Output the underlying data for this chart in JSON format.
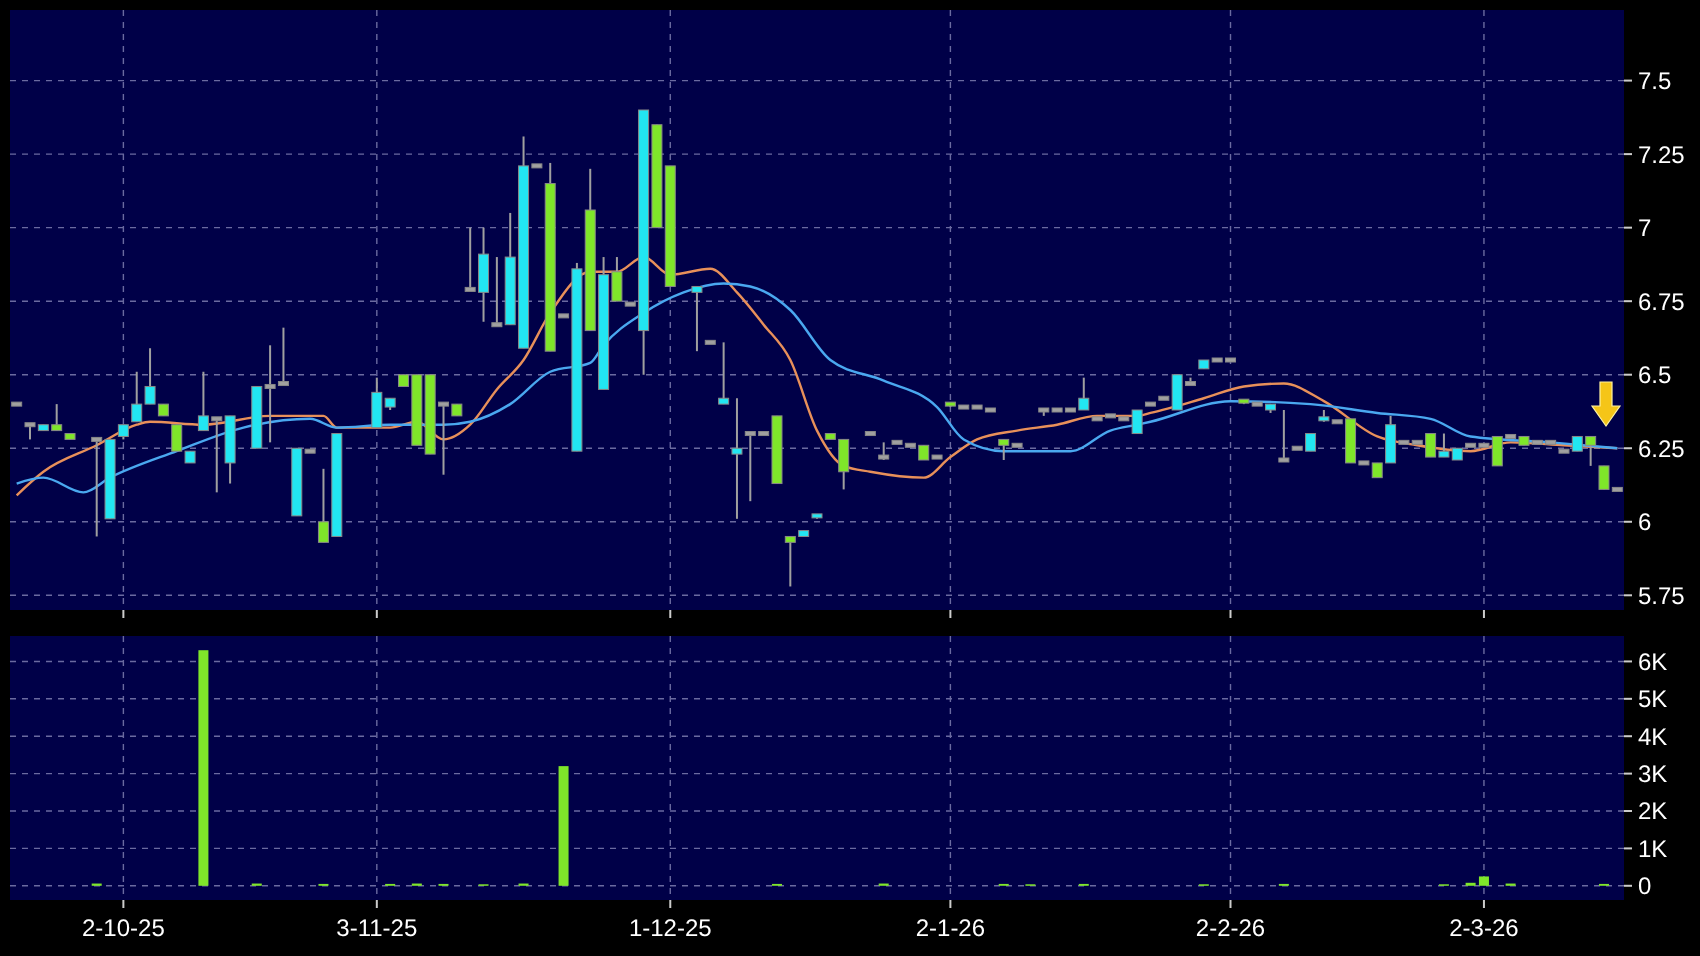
{
  "chart_data": [
    {
      "type": "candlestick",
      "tick_labels": "y",
      "ylim": [
        5.7,
        7.74
      ],
      "yticks": [
        5.75,
        6,
        6.25,
        6.5,
        6.75,
        7,
        7.25,
        7.5
      ],
      "grid": true,
      "categories": [
        null,
        null,
        null,
        null,
        null,
        null,
        null,
        null,
        null,
        null,
        null,
        null,
        null,
        null,
        null,
        null,
        null,
        null,
        null,
        null,
        null,
        null,
        null,
        null,
        null,
        null,
        null,
        null,
        null,
        null,
        null,
        null,
        null,
        null,
        null,
        null,
        null,
        null,
        null,
        null,
        null,
        null,
        null,
        null,
        null,
        null,
        null,
        null,
        null,
        null,
        null,
        null,
        null,
        null,
        null,
        null,
        null,
        null,
        null,
        null,
        null,
        null,
        null,
        null,
        null,
        null,
        null,
        null,
        null,
        null,
        null,
        null,
        null,
        null,
        null,
        null,
        null,
        null,
        null,
        null,
        null,
        null,
        null,
        null,
        null,
        null,
        null,
        null,
        null,
        null,
        null,
        null,
        null,
        null,
        null,
        null,
        null,
        null,
        null,
        null,
        null,
        null,
        null,
        null,
        null,
        null,
        null,
        null,
        null,
        null,
        null,
        null,
        null,
        null,
        null,
        null,
        null,
        null,
        null,
        null,
        null
      ],
      "ohlc": [
        [
          6.4,
          6.4,
          6.4,
          6.4
        ],
        [
          6.33,
          6.33,
          6.28,
          6.33
        ],
        [
          6.31,
          6.33,
          6.31,
          6.33
        ],
        [
          6.33,
          6.4,
          6.31,
          6.31
        ],
        [
          6.3,
          6.3,
          6.28,
          6.28
        ],
        null,
        [
          6.28,
          6.28,
          5.95,
          6.28
        ],
        [
          6.01,
          6.28,
          6.01,
          6.28
        ],
        [
          6.29,
          6.33,
          6.28,
          6.33
        ],
        [
          6.34,
          6.51,
          6.34,
          6.4
        ],
        [
          6.4,
          6.59,
          6.4,
          6.46
        ],
        [
          6.4,
          6.4,
          6.36,
          6.36
        ],
        [
          6.33,
          6.33,
          6.24,
          6.24
        ],
        [
          6.2,
          6.24,
          6.2,
          6.24
        ],
        [
          6.31,
          6.51,
          6.31,
          6.36
        ],
        [
          6.35,
          6.35,
          6.1,
          6.35
        ],
        [
          6.2,
          6.36,
          6.13,
          6.36
        ],
        null,
        [
          6.25,
          6.46,
          6.25,
          6.46
        ],
        [
          6.46,
          6.6,
          6.27,
          6.46
        ],
        [
          6.47,
          6.66,
          6.47,
          6.47
        ],
        [
          6.02,
          6.25,
          6.02,
          6.25
        ],
        [
          6.24,
          6.24,
          6.24,
          6.24
        ],
        [
          6,
          6.18,
          5.93,
          5.93
        ],
        [
          5.95,
          6.3,
          5.95,
          6.3
        ],
        null,
        null,
        [
          6.32,
          6.49,
          6.32,
          6.44
        ],
        [
          6.39,
          6.42,
          6.38,
          6.42
        ],
        [
          6.5,
          6.5,
          6.46,
          6.46
        ],
        [
          6.5,
          6.5,
          6.26,
          6.26
        ],
        [
          6.5,
          6.5,
          6.23,
          6.23
        ],
        [
          6.4,
          6.4,
          6.16,
          6.4
        ],
        [
          6.4,
          6.4,
          6.36,
          6.36
        ],
        [
          6.79,
          7,
          6.79,
          6.79
        ],
        [
          6.78,
          7,
          6.68,
          6.91
        ],
        [
          6.67,
          6.9,
          6.67,
          6.67
        ],
        [
          6.67,
          7.05,
          6.67,
          6.9
        ],
        [
          6.59,
          7.31,
          6.59,
          7.21
        ],
        [
          7.21,
          7.21,
          7.21,
          7.21
        ],
        [
          7.15,
          7.22,
          6.58,
          6.58
        ],
        [
          6.7,
          6.7,
          6.7,
          6.7
        ],
        [
          6.24,
          6.88,
          6.24,
          6.86
        ],
        [
          7.06,
          7.2,
          6.65,
          6.65
        ],
        [
          6.45,
          6.9,
          6.45,
          6.84
        ],
        [
          6.85,
          6.9,
          6.75,
          6.75
        ],
        [
          6.74,
          6.74,
          6.74,
          6.74
        ],
        [
          6.65,
          7.4,
          6.5,
          7.4
        ],
        [
          7.35,
          7.35,
          7,
          7
        ],
        [
          7.21,
          7.21,
          6.8,
          6.8
        ],
        null,
        [
          6.78,
          6.8,
          6.58,
          6.8
        ],
        [
          6.61,
          6.61,
          6.61,
          6.61
        ],
        [
          6.4,
          6.61,
          6.4,
          6.42
        ],
        [
          6.23,
          6.42,
          6.01,
          6.25
        ],
        [
          6.3,
          6.3,
          6.07,
          6.3
        ],
        [
          6.3,
          6.3,
          6.3,
          6.3
        ],
        [
          6.36,
          6.36,
          6.13,
          6.13
        ],
        [
          5.95,
          5.95,
          5.78,
          5.93
        ],
        [
          5.95,
          5.97,
          5.95,
          5.97
        ],
        [
          6.01,
          6.02,
          6.01,
          6.02
        ],
        [
          6.3,
          6.3,
          6.28,
          6.28
        ],
        [
          6.28,
          6.28,
          6.11,
          6.17
        ],
        null,
        [
          6.3,
          6.3,
          6.3,
          6.3
        ],
        [
          6.22,
          6.27,
          6.21,
          6.22
        ],
        [
          6.27,
          6.27,
          6.27,
          6.27
        ],
        [
          6.26,
          6.26,
          6.26,
          6.26
        ],
        [
          6.26,
          6.26,
          6.21,
          6.21
        ],
        [
          6.22,
          6.22,
          6.22,
          6.22
        ],
        [
          6.4,
          6.4,
          6.39,
          6.39
        ],
        [
          6.39,
          6.39,
          6.39,
          6.39
        ],
        [
          6.39,
          6.39,
          6.39,
          6.39
        ],
        [
          6.38,
          6.38,
          6.38,
          6.38
        ],
        [
          6.28,
          6.28,
          6.21,
          6.26
        ],
        [
          6.26,
          6.26,
          6.26,
          6.26
        ],
        null,
        [
          6.38,
          6.38,
          6.36,
          6.38
        ],
        [
          6.38,
          6.38,
          6.38,
          6.38
        ],
        [
          6.38,
          6.38,
          6.38,
          6.38
        ],
        [
          6.38,
          6.49,
          6.38,
          6.42
        ],
        [
          6.35,
          6.35,
          6.35,
          6.35
        ],
        [
          6.36,
          6.36,
          6.36,
          6.36
        ],
        [
          6.35,
          6.35,
          6.35,
          6.35
        ],
        [
          6.3,
          6.38,
          6.3,
          6.38
        ],
        [
          6.4,
          6.4,
          6.4,
          6.4
        ],
        [
          6.42,
          6.42,
          6.42,
          6.42
        ],
        [
          6.38,
          6.5,
          6.38,
          6.5
        ],
        [
          6.47,
          6.49,
          6.47,
          6.47
        ],
        [
          6.52,
          6.55,
          6.52,
          6.55
        ],
        [
          6.55,
          6.55,
          6.55,
          6.55
        ],
        [
          6.55,
          6.55,
          6.55,
          6.55
        ],
        [
          6.41,
          6.41,
          6.4,
          6.4
        ],
        [
          6.4,
          6.4,
          6.4,
          6.4
        ],
        [
          6.38,
          6.4,
          6.37,
          6.4
        ],
        [
          6.21,
          6.38,
          6.21,
          6.21
        ],
        [
          6.25,
          6.25,
          6.25,
          6.25
        ],
        [
          6.24,
          6.3,
          6.24,
          6.3
        ],
        [
          6.34,
          6.38,
          6.34,
          6.35
        ],
        [
          6.34,
          6.34,
          6.34,
          6.34
        ],
        [
          6.35,
          6.35,
          6.2,
          6.2
        ],
        [
          6.2,
          6.2,
          6.2,
          6.2
        ],
        [
          6.2,
          6.2,
          6.15,
          6.15
        ],
        [
          6.2,
          6.36,
          6.2,
          6.33
        ],
        [
          6.27,
          6.27,
          6.27,
          6.27
        ],
        [
          6.27,
          6.27,
          6.27,
          6.27
        ],
        [
          6.3,
          6.3,
          6.22,
          6.22
        ],
        [
          6.22,
          6.3,
          6.22,
          6.24
        ],
        [
          6.21,
          6.25,
          6.21,
          6.25
        ],
        [
          6.26,
          6.26,
          6.26,
          6.26
        ],
        [
          6.26,
          6.26,
          6.26,
          6.26
        ],
        [
          6.29,
          6.29,
          6.19,
          6.19
        ],
        [
          6.29,
          6.29,
          6.29,
          6.29
        ],
        [
          6.29,
          6.29,
          6.26,
          6.26
        ],
        [
          6.27,
          6.27,
          6.27,
          6.27
        ],
        [
          6.27,
          6.27,
          6.27,
          6.27
        ],
        [
          6.24,
          6.24,
          6.24,
          6.24
        ],
        [
          6.24,
          6.29,
          6.24,
          6.29
        ],
        [
          6.29,
          6.29,
          6.19,
          6.26
        ],
        [
          6.19,
          6.19,
          6.11,
          6.11
        ],
        [
          6.11,
          6.11,
          6.11,
          6.11
        ]
      ],
      "colors": [
        "#a0a0a0",
        "#a0a0a0",
        "#22e6f2",
        "#7fe62a",
        "#7fe62a",
        null,
        "#a0a0a0",
        "#22e6f2",
        "#22e6f2",
        "#22e6f2",
        "#22e6f2",
        "#7fe62a",
        "#7fe62a",
        "#22e6f2",
        "#22e6f2",
        "#a0a0a0",
        "#22e6f2",
        null,
        "#22e6f2",
        "#a0a0a0",
        "#a0a0a0",
        "#22e6f2",
        "#a0a0a0",
        "#7fe62a",
        "#22e6f2",
        null,
        null,
        "#22e6f2",
        "#22e6f2",
        "#7fe62a",
        "#7fe62a",
        "#7fe62a",
        "#a0a0a0",
        "#7fe62a",
        "#a0a0a0",
        "#22e6f2",
        "#a0a0a0",
        "#22e6f2",
        "#22e6f2",
        "#a0a0a0",
        "#7fe62a",
        "#a0a0a0",
        "#22e6f2",
        "#7fe62a",
        "#22e6f2",
        "#7fe62a",
        "#a0a0a0",
        "#22e6f2",
        "#7fe62a",
        "#7fe62a",
        null,
        "#22e6f2",
        "#a0a0a0",
        "#22e6f2",
        "#22e6f2",
        "#a0a0a0",
        "#a0a0a0",
        "#7fe62a",
        "#7fe62a",
        "#22e6f2",
        "#22e6f2",
        "#7fe62a",
        "#7fe62a",
        null,
        "#a0a0a0",
        "#a0a0a0",
        "#a0a0a0",
        "#a0a0a0",
        "#7fe62a",
        "#a0a0a0",
        "#7fe62a",
        "#a0a0a0",
        "#a0a0a0",
        "#a0a0a0",
        "#7fe62a",
        "#a0a0a0",
        null,
        "#a0a0a0",
        "#a0a0a0",
        "#a0a0a0",
        "#22e6f2",
        "#a0a0a0",
        "#a0a0a0",
        "#a0a0a0",
        "#22e6f2",
        "#a0a0a0",
        "#a0a0a0",
        "#22e6f2",
        "#a0a0a0",
        "#22e6f2",
        "#a0a0a0",
        "#a0a0a0",
        "#7fe62a",
        "#a0a0a0",
        "#22e6f2",
        "#a0a0a0",
        "#a0a0a0",
        "#22e6f2",
        "#22e6f2",
        "#a0a0a0",
        "#7fe62a",
        "#a0a0a0",
        "#7fe62a",
        "#22e6f2",
        "#a0a0a0",
        "#a0a0a0",
        "#7fe62a",
        "#22e6f2",
        "#22e6f2",
        "#a0a0a0",
        "#a0a0a0",
        "#7fe62a",
        "#a0a0a0",
        "#7fe62a",
        "#a0a0a0",
        "#a0a0a0",
        "#a0a0a0",
        "#22e6f2",
        "#7fe62a",
        "#7fe62a",
        "#a0a0a0"
      ],
      "series": [
        {
          "type": "line",
          "color": "#e8905a",
          "values": [
            6.09,
            null,
            6.17,
            null,
            null,
            null,
            6.26,
            null,
            null,
            6.33,
            6.34,
            null,
            null,
            null,
            6.33,
            null,
            null,
            null,
            null,
            6.36,
            null,
            null,
            null,
            6.36,
            6.32,
            null,
            null,
            null,
            6.32,
            null,
            6.34,
            null,
            6.28,
            null,
            6.33,
            null,
            6.45,
            null,
            6.55,
            null,
            6.71,
            null,
            null,
            6.85,
            null,
            6.85,
            null,
            6.9,
            null,
            6.84,
            null,
            null,
            6.86,
            null,
            6.78,
            null,
            6.67,
            null,
            6.55,
            null,
            6.31,
            null,
            6.19,
            null,
            6.17,
            null,
            null,
            null,
            6.15,
            null,
            6.22,
            null,
            6.28,
            null,
            null,
            6.31,
            null,
            null,
            6.33,
            null,
            null,
            6.36,
            null,
            null,
            6.36,
            6.37,
            null,
            null,
            null,
            6.42,
            null,
            null,
            6.46,
            null,
            null,
            6.47,
            null,
            null,
            6.41,
            null,
            null,
            null,
            6.29,
            null,
            null,
            6.26,
            null,
            null,
            null,
            6.24,
            null,
            null,
            6.27,
            null,
            null,
            null,
            6.26,
            null,
            null,
            null,
            6.25
          ]
        },
        {
          "type": "line",
          "color": "#4aa8f0",
          "values": [
            6.13,
            null,
            6.15,
            null,
            null,
            6.1,
            null,
            6.15,
            null,
            null,
            null,
            null,
            6.24,
            null,
            null,
            null,
            null,
            6.32,
            null,
            null,
            null,
            null,
            6.35,
            null,
            6.32,
            null,
            null,
            null,
            6.33,
            null,
            null,
            null,
            6.33,
            null,
            6.34,
            null,
            null,
            6.4,
            null,
            null,
            6.51,
            null,
            null,
            6.54,
            6.6,
            null,
            null,
            6.71,
            null,
            null,
            6.78,
            null,
            null,
            6.81,
            null,
            6.8,
            null,
            null,
            6.72,
            null,
            null,
            6.55,
            null,
            null,
            null,
            6.48,
            null,
            null,
            null,
            6.39,
            null,
            6.28,
            null,
            null,
            6.24,
            null,
            null,
            null,
            null,
            6.24,
            null,
            null,
            6.31,
            null,
            6.33,
            6.34,
            null,
            null,
            null,
            null,
            null,
            6.41,
            null,
            null,
            null,
            null,
            null,
            6.4,
            null,
            null,
            null,
            null,
            6.37,
            null,
            null,
            null,
            6.35,
            null,
            null,
            6.29,
            null,
            null,
            null,
            null,
            null,
            6.27,
            null,
            null,
            null,
            null,
            6.25
          ]
        }
      ]
    },
    {
      "type": "bar",
      "ylim": [
        -380,
        6680
      ],
      "yticks": [
        {
          "value": 0,
          "label": "0"
        },
        {
          "value": 1000,
          "label": "1K"
        },
        {
          "value": 2000,
          "label": "2K"
        },
        {
          "value": 3000,
          "label": "3K"
        },
        {
          "value": 4000,
          "label": "4K"
        },
        {
          "value": 5000,
          "label": "5K"
        },
        {
          "value": 6000,
          "label": "6K"
        }
      ],
      "grid": true,
      "color": "#7fe62a",
      "categories": [
        null,
        null,
        null,
        null,
        null,
        null,
        null,
        null,
        "2-10-25",
        null,
        null,
        null,
        null,
        null,
        null,
        null,
        null,
        null,
        null,
        null,
        null,
        null,
        null,
        null,
        null,
        null,
        null,
        "3-11-25",
        null,
        null,
        null,
        null,
        null,
        null,
        null,
        null,
        null,
        null,
        null,
        null,
        null,
        null,
        null,
        null,
        null,
        null,
        null,
        null,
        null,
        "1-12-25",
        null,
        null,
        null,
        null,
        null,
        null,
        null,
        null,
        null,
        null,
        null,
        null,
        null,
        null,
        null,
        null,
        null,
        null,
        null,
        null,
        "2-1-26",
        null,
        null,
        null,
        null,
        null,
        null,
        null,
        null,
        null,
        null,
        null,
        null,
        null,
        null,
        null,
        null,
        null,
        null,
        null,
        null,
        "2-2-26",
        null,
        null,
        null,
        null,
        null,
        null,
        null,
        null,
        null,
        null,
        null,
        null,
        null,
        null,
        null,
        null,
        null,
        null,
        "2-3-26",
        null,
        null,
        null,
        null,
        null,
        null,
        null,
        null,
        null,
        null
      ],
      "values": [
        null,
        null,
        null,
        null,
        null,
        null,
        60,
        null,
        null,
        null,
        null,
        null,
        null,
        null,
        6300,
        null,
        null,
        null,
        60,
        null,
        null,
        null,
        null,
        50,
        null,
        null,
        null,
        null,
        50,
        null,
        60,
        null,
        50,
        null,
        null,
        40,
        null,
        null,
        60,
        null,
        null,
        3200,
        null,
        null,
        null,
        null,
        null,
        null,
        null,
        null,
        null,
        null,
        null,
        null,
        null,
        null,
        null,
        50,
        null,
        null,
        null,
        null,
        null,
        null,
        null,
        60,
        null,
        null,
        null,
        null,
        null,
        null,
        null,
        null,
        50,
        null,
        40,
        null,
        null,
        null,
        50,
        null,
        null,
        null,
        null,
        null,
        null,
        null,
        null,
        40,
        null,
        null,
        null,
        null,
        null,
        50,
        null,
        null,
        null,
        null,
        null,
        null,
        null,
        null,
        null,
        null,
        null,
        40,
        null,
        80,
        250,
        null,
        60,
        null,
        null,
        null,
        null,
        null,
        null,
        50,
        null
      ]
    }
  ]
}
